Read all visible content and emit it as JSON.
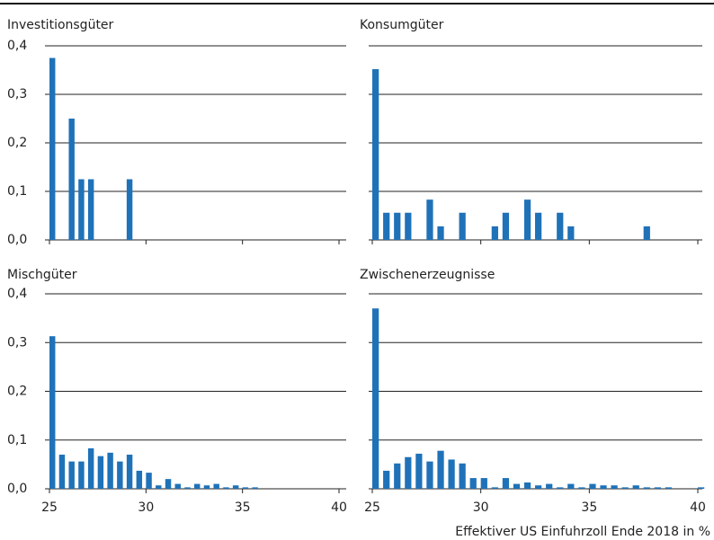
{
  "chart_data": {
    "type": "bar",
    "color": "#1f72b8",
    "grid": true,
    "xlabel": "Effektiver US Einfuhrzoll Ende 2018 in %",
    "xlim": [
      25,
      40
    ],
    "xticks": [
      25,
      30,
      35,
      40
    ],
    "ylim": [
      0,
      0.4
    ],
    "yticks": [
      {
        "value": 0,
        "label": "0,0"
      },
      {
        "value": 0.1,
        "label": "0,1"
      },
      {
        "value": 0.2,
        "label": "0,2"
      },
      {
        "value": 0.3,
        "label": "0,3"
      },
      {
        "value": 0.4,
        "label": "0,4"
      }
    ],
    "panels": [
      {
        "title": "Investitionsgüter",
        "x": [
          25,
          26,
          26.5,
          27,
          29
        ],
        "values": [
          0.375,
          0.25,
          0.125,
          0.125,
          0.125
        ]
      },
      {
        "title": "Konsumgüter",
        "x": [
          25,
          25.5,
          26,
          26.5,
          27.5,
          28,
          29,
          30.5,
          31,
          32,
          32.5,
          33.5,
          34,
          37.5
        ],
        "values": [
          0.352,
          0.056,
          0.056,
          0.056,
          0.083,
          0.028,
          0.056,
          0.028,
          0.056,
          0.083,
          0.056,
          0.056,
          0.028,
          0.028
        ]
      },
      {
        "title": "Mischgüter",
        "x": [
          25,
          25.5,
          26,
          26.5,
          27,
          27.5,
          28,
          28.5,
          29,
          29.5,
          30,
          30.5,
          31,
          31.5,
          32,
          32.5,
          33,
          33.5,
          34,
          34.5,
          35,
          35.5
        ],
        "values": [
          0.313,
          0.07,
          0.056,
          0.056,
          0.083,
          0.067,
          0.074,
          0.056,
          0.07,
          0.037,
          0.033,
          0.007,
          0.02,
          0.01,
          0.003,
          0.01,
          0.007,
          0.01,
          0.003,
          0.007,
          0.003,
          0.003
        ]
      },
      {
        "title": "Zwischenerzeugnisse",
        "x": [
          25,
          25.5,
          26,
          26.5,
          27,
          27.5,
          28,
          28.5,
          29,
          29.5,
          30,
          30.5,
          31,
          31.5,
          32,
          32.5,
          33,
          33.5,
          34,
          34.5,
          35,
          35.5,
          36,
          36.5,
          37,
          37.5,
          38,
          38.5,
          40
        ],
        "values": [
          0.37,
          0.037,
          0.052,
          0.065,
          0.072,
          0.056,
          0.078,
          0.06,
          0.052,
          0.022,
          0.022,
          0.003,
          0.022,
          0.01,
          0.013,
          0.007,
          0.01,
          0.003,
          0.01,
          0.003,
          0.01,
          0.007,
          0.007,
          0.003,
          0.007,
          0.003,
          0.003,
          0.003,
          0.003
        ]
      }
    ]
  }
}
